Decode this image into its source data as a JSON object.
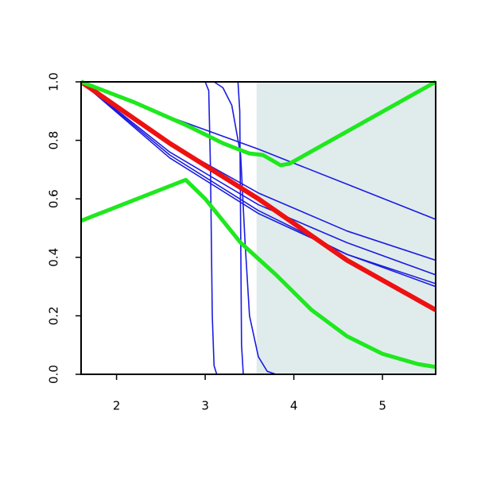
{
  "chart_data": {
    "type": "line",
    "xlim": [
      1.6,
      5.6
    ],
    "ylim": [
      0,
      1
    ],
    "xticks": [
      2,
      3,
      4,
      5
    ],
    "yticks": [
      {
        "value": 0,
        "label": "0.0"
      },
      {
        "value": 0.2,
        "label": "0.2"
      },
      {
        "value": 0.4,
        "label": "0.4"
      },
      {
        "value": 0.6,
        "label": "0.6"
      },
      {
        "value": 0.8,
        "label": "0.8"
      },
      {
        "value": 1,
        "label": "1.0"
      }
    ],
    "shaded_region": {
      "xmin": 3.58,
      "xmax": 5.6,
      "color": "#e0ecec"
    },
    "series": [
      {
        "color": "#1c1ce0",
        "width": 1.6,
        "x": [
          1.6,
          2.6,
          3.6,
          4.6,
          5.6
        ],
        "values": [
          1,
          0.88,
          0.77,
          0.65,
          0.53
        ]
      },
      {
        "color": "#1c1ce0",
        "width": 1.6,
        "x": [
          1.6,
          2.6,
          3.6,
          4.6,
          5.6
        ],
        "values": [
          1,
          0.79,
          0.62,
          0.49,
          0.39
        ]
      },
      {
        "color": "#1c1ce0",
        "width": 1.6,
        "x": [
          1.6,
          2.6,
          3.6,
          4.6,
          5.6
        ],
        "values": [
          1,
          0.76,
          0.58,
          0.45,
          0.34
        ]
      },
      {
        "color": "#1c1ce0",
        "width": 1.6,
        "x": [
          1.6,
          2.6,
          3.6,
          4.6,
          5.6
        ],
        "values": [
          1,
          0.75,
          0.56,
          0.41,
          0.31
        ]
      },
      {
        "color": "#1c1ce0",
        "width": 1.6,
        "x": [
          1.6,
          2.6,
          3.6,
          4.6,
          5.6
        ],
        "values": [
          1,
          0.74,
          0.55,
          0.41,
          0.3
        ]
      },
      {
        "color": "#1c1ce0",
        "width": 1.6,
        "x": [
          1.6,
          3.0,
          3.04,
          3.06,
          3.08,
          3.1,
          3.13,
          5.6
        ],
        "values": [
          1,
          1,
          0.97,
          0.7,
          0.2,
          0.03,
          0,
          0
        ]
      },
      {
        "color": "#1c1ce0",
        "width": 1.6,
        "x": [
          1.6,
          3.37,
          3.39,
          3.4,
          3.41,
          3.43,
          5.6
        ],
        "values": [
          1,
          1,
          0.9,
          0.5,
          0.1,
          0,
          0
        ]
      },
      {
        "color": "#1c1ce0",
        "width": 1.6,
        "x": [
          1.6,
          3.1,
          3.2,
          3.3,
          3.4,
          3.45,
          3.5,
          3.6,
          3.7,
          3.8,
          5.6
        ],
        "values": [
          1,
          1,
          0.98,
          0.92,
          0.75,
          0.45,
          0.2,
          0.06,
          0.01,
          0,
          0
        ]
      },
      {
        "color": "#ee1111",
        "width": 6,
        "x": [
          1.6,
          2.6,
          3.6,
          4.6,
          5.6
        ],
        "values": [
          1,
          0.79,
          0.6,
          0.39,
          0.22
        ]
      },
      {
        "color": "#1ee81e",
        "width": 5,
        "x": [
          1.6,
          2.2,
          2.8,
          3.2,
          3.5,
          3.65,
          3.85,
          3.95,
          5.6
        ],
        "values": [
          1,
          0.93,
          0.85,
          0.79,
          0.755,
          0.75,
          0.715,
          0.72,
          1.0
        ]
      },
      {
        "color": "#1ee81e",
        "width": 5,
        "x": [
          1.6,
          2.78,
          3.0,
          3.4,
          3.8,
          4.2,
          4.6,
          5.0,
          5.4,
          5.6
        ],
        "values": [
          0.525,
          0.665,
          0.6,
          0.45,
          0.34,
          0.22,
          0.13,
          0.07,
          0.035,
          0.025
        ]
      }
    ]
  }
}
